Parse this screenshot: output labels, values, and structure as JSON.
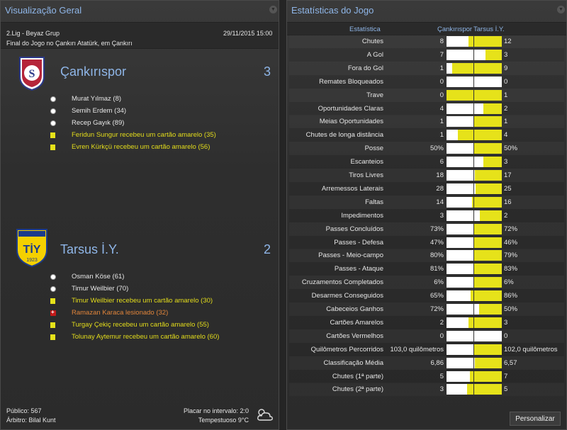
{
  "left_panel": {
    "title": "Visualização Geral",
    "competition": "2.Lig - Beyaz Grup",
    "datetime": "29/11/2015 15:00",
    "subtitle": "Final do Jogo no Çankırı Atatürk, em Çankırı",
    "home": {
      "name": "Çankırıspor",
      "score": "3"
    },
    "away": {
      "name": "Tarsus İ.Y.",
      "score": "2"
    },
    "home_events": [
      {
        "type": "goal",
        "text": "Murat Yılmaz (8)"
      },
      {
        "type": "goal",
        "text": "Semih Erdem (34)"
      },
      {
        "type": "goal",
        "text": "Recep Gayık (89)"
      },
      {
        "type": "yellow",
        "text": "Feridun Sungur recebeu um cartão amarelo (35)"
      },
      {
        "type": "yellow",
        "text": "Evren Kürkçü recebeu um cartão amarelo (56)"
      }
    ],
    "away_events": [
      {
        "type": "goal",
        "text": "Osman Köse (61)"
      },
      {
        "type": "goal",
        "text": "Timur Weilbier (70)"
      },
      {
        "type": "yellow",
        "text": "Timur Weilbier recebeu um cartão amarelo (30)"
      },
      {
        "type": "injury",
        "text": "Ramazan Karaca lesionado (32)"
      },
      {
        "type": "yellow",
        "text": "Turgay Çekiç recebeu um cartão amarelo (55)"
      },
      {
        "type": "yellow",
        "text": "Tolunay Aytemur recebeu um cartão amarelo (60)"
      }
    ],
    "attendance": "Público: 567",
    "referee": "Árbitro: Bilal Kunt",
    "halftime": "Placar no intervalo: 2:0",
    "weather": "Tempestuoso 9°C"
  },
  "right_panel": {
    "title": "Estatísticas do Jogo",
    "col_stat": "Estatística",
    "col_home": "Çankırıspor",
    "col_away": "Tarsus İ.Y.",
    "customize_button": "Personalizar",
    "stats": [
      {
        "label": "Chutes",
        "home": "8",
        "away": "12",
        "hf": 0.4
      },
      {
        "label": "A Gol",
        "home": "7",
        "away": "3",
        "hf": 0.7
      },
      {
        "label": "Fora do Gol",
        "home": "1",
        "away": "9",
        "hf": 0.1
      },
      {
        "label": "Remates Bloqueados",
        "home": "0",
        "away": "0",
        "hf": null
      },
      {
        "label": "Trave",
        "home": "0",
        "away": "1",
        "hf": 0.0
      },
      {
        "label": "Oportunidades Claras",
        "home": "4",
        "away": "2",
        "hf": 0.667
      },
      {
        "label": "Meias Oportunidades",
        "home": "1",
        "away": "1",
        "hf": 0.5
      },
      {
        "label": "Chutes de longa distância",
        "home": "1",
        "away": "4",
        "hf": 0.2
      },
      {
        "label": "Posse",
        "home": "50%",
        "away": "50%",
        "hf": 0.5
      },
      {
        "label": "Escanteios",
        "home": "6",
        "away": "3",
        "hf": 0.667
      },
      {
        "label": "Tiros Livres",
        "home": "18",
        "away": "17",
        "hf": 0.514
      },
      {
        "label": "Arremessos Laterais",
        "home": "28",
        "away": "25",
        "hf": 0.528
      },
      {
        "label": "Faltas",
        "home": "14",
        "away": "16",
        "hf": 0.467
      },
      {
        "label": "Impedimentos",
        "home": "3",
        "away": "2",
        "hf": 0.6
      },
      {
        "label": "Passes Concluídos",
        "home": "73%",
        "away": "72%",
        "hf": 0.503
      },
      {
        "label": "Passes - Defesa",
        "home": "47%",
        "away": "46%",
        "hf": 0.505
      },
      {
        "label": "Passes - Meio-campo",
        "home": "80%",
        "away": "79%",
        "hf": 0.503
      },
      {
        "label": "Passes - Ataque",
        "home": "81%",
        "away": "83%",
        "hf": 0.494
      },
      {
        "label": "Cruzamentos Completados",
        "home": "6%",
        "away": "6%",
        "hf": 0.5
      },
      {
        "label": "Desarmes Conseguidos",
        "home": "65%",
        "away": "86%",
        "hf": 0.43
      },
      {
        "label": "Cabeceios Ganhos",
        "home": "72%",
        "away": "50%",
        "hf": 0.59
      },
      {
        "label": "Cartões Amarelos",
        "home": "2",
        "away": "3",
        "hf": 0.4
      },
      {
        "label": "Cartões Vermelhos",
        "home": "0",
        "away": "0",
        "hf": null
      },
      {
        "label": "Quilômetros Percorridos",
        "home": "103,0 quilômetros",
        "away": "102,0 quilômetros",
        "hf": 0.502
      },
      {
        "label": "Classificação Média",
        "home": "6,86",
        "away": "6,57",
        "hf": 0.511
      },
      {
        "label": "Chutes (1ª parte)",
        "home": "5",
        "away": "7",
        "hf": 0.417
      },
      {
        "label": "Chutes (2ª parte)",
        "home": "3",
        "away": "5",
        "hf": 0.375
      }
    ]
  },
  "colors": {
    "accent": "#8fb6e8",
    "card_yellow": "#e6e21a",
    "bar_bg": "#ffffff"
  }
}
